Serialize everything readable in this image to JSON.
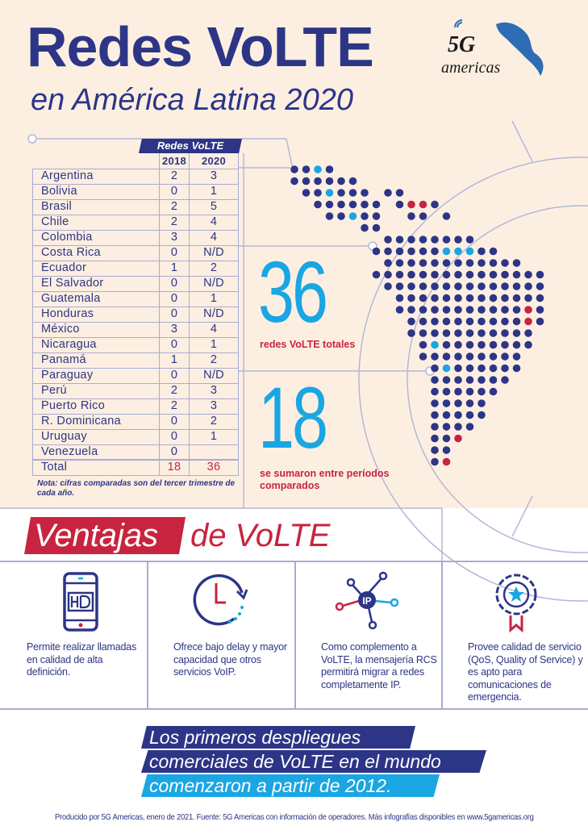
{
  "header": {
    "title": "Redes VoLTE",
    "subtitle": "en América Latina 2020",
    "logo_text": "5G americas"
  },
  "table": {
    "group_header": "Redes VoLTE",
    "columns": [
      "2018",
      "2020"
    ],
    "rows": [
      {
        "country": "Argentina",
        "y2018": "2",
        "y2020": "3"
      },
      {
        "country": "Bolivia",
        "y2018": "0",
        "y2020": "1"
      },
      {
        "country": "Brasil",
        "y2018": "2",
        "y2020": "5"
      },
      {
        "country": "Chile",
        "y2018": "2",
        "y2020": "4"
      },
      {
        "country": "Colombia",
        "y2018": "3",
        "y2020": "4"
      },
      {
        "country": "Costa Rica",
        "y2018": "0",
        "y2020": "N/D"
      },
      {
        "country": "Ecuador",
        "y2018": "1",
        "y2020": "2"
      },
      {
        "country": "El Salvador",
        "y2018": "0",
        "y2020": "N/D"
      },
      {
        "country": "Guatemala",
        "y2018": "0",
        "y2020": "1"
      },
      {
        "country": "Honduras",
        "y2018": "0",
        "y2020": "N/D"
      },
      {
        "country": "México",
        "y2018": "3",
        "y2020": "4"
      },
      {
        "country": "Nicaragua",
        "y2018": "0",
        "y2020": "1"
      },
      {
        "country": "Panamá",
        "y2018": "1",
        "y2020": "2"
      },
      {
        "country": "Paraguay",
        "y2018": "0",
        "y2020": "N/D"
      },
      {
        "country": "Perú",
        "y2018": "2",
        "y2020": "3"
      },
      {
        "country": "Puerto Rico",
        "y2018": "2",
        "y2020": "3"
      },
      {
        "country": "R.  Dominicana",
        "y2018": "0",
        "y2020": "2"
      },
      {
        "country": "Uruguay",
        "y2018": "0",
        "y2020": "1"
      },
      {
        "country": "Venezuela",
        "y2018": "0",
        "y2020": ""
      }
    ],
    "total": {
      "label": "Total",
      "y2018": "18",
      "y2020": "36"
    },
    "note": "Nota: cifras comparadas son del tercer trimestre de cada año."
  },
  "stats": [
    {
      "value": "36",
      "label": "redes VoLTE totales"
    },
    {
      "value": "18",
      "label": "se sumaron entre períodos comparados"
    }
  ],
  "ventajas": {
    "title_a": "Ventajas",
    "title_b": "de VoLTE",
    "items": [
      {
        "icon": "hd-phone-icon",
        "text": "Permite realizar llamadas en calidad de alta definición."
      },
      {
        "icon": "clock-icon",
        "text": "Ofrece bajo delay y mayor capacidad que otros servicios VoIP."
      },
      {
        "icon": "ip-network-icon",
        "icon_text": "IP",
        "text": "Como complemento a VoLTE, la mensajería RCS permitirá migrar a redes completamente IP."
      },
      {
        "icon": "quality-badge-icon",
        "text": "Provee calidad de servicio (QoS, Quality of Service) y es apto para comunicaciones de emergencia."
      }
    ]
  },
  "highlight": [
    "Los primeros despliegues",
    "comerciales de VoLTE en el mundo",
    "comenzaron a partir de 2012."
  ],
  "footer": "Producido por 5G Americas, enero de 2021. Fuente: 5G Americas con información de operadores. Más infografías disponibles en www.5gamericas.org",
  "colors": {
    "dark_blue": "#2d3587",
    "cyan": "#1aa6e2",
    "red": "#c8243f",
    "cream": "#fcefe2"
  }
}
